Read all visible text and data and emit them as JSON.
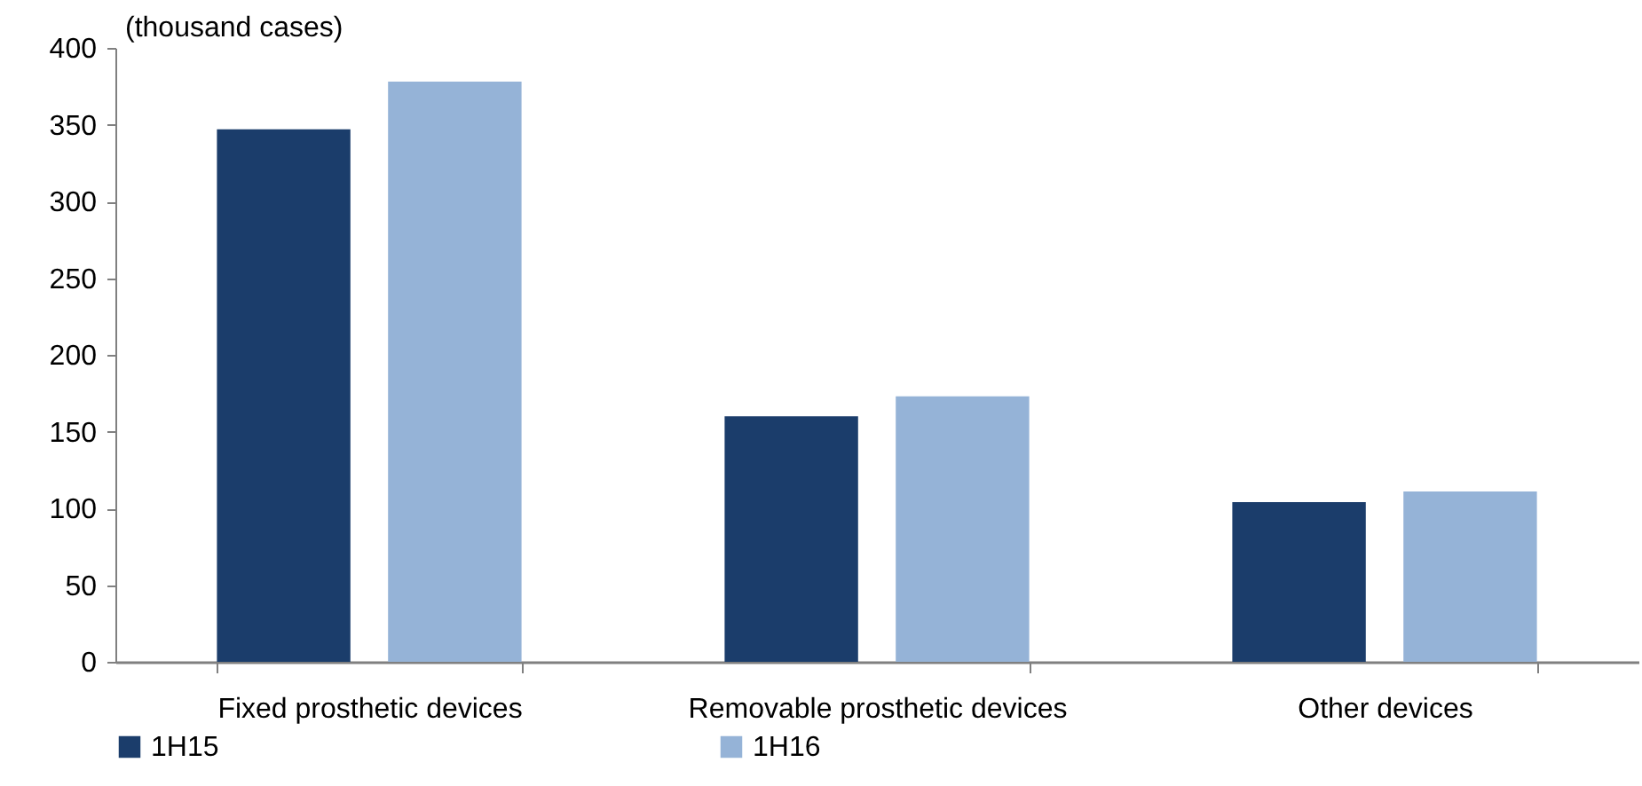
{
  "chart_data": {
    "type": "bar",
    "ylabel": "(thousand cases)",
    "categories": [
      "Fixed prosthetic devices",
      "Removable prosthetic devices",
      "Other devices"
    ],
    "series": [
      {
        "name": "1H15",
        "color": "#1b3d6b",
        "values": [
          347,
          160,
          104
        ]
      },
      {
        "name": "1H16",
        "color": "#95b3d7",
        "values": [
          378,
          173,
          111
        ]
      }
    ],
    "ylim": [
      0,
      400
    ],
    "yticks": [
      0,
      50,
      100,
      150,
      200,
      250,
      300,
      350,
      400
    ],
    "grid": false,
    "legend": "bottom"
  }
}
